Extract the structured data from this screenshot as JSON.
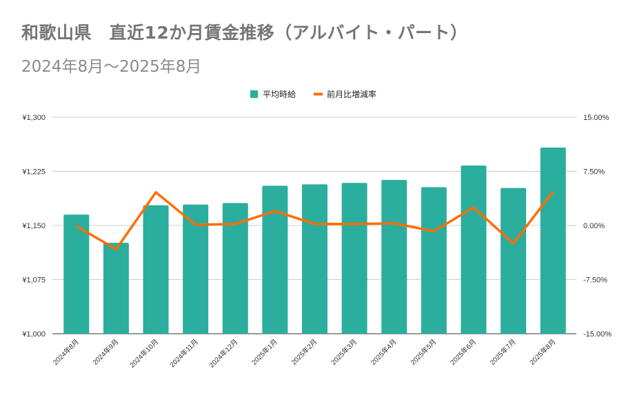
{
  "chart_data": {
    "type": "bar",
    "title": "和歌山県　直近12か月賃金推移（アルバイト・パート）",
    "subtitle": "2024年8月～2025年8月",
    "categories": [
      "2024年8月",
      "2024年9月",
      "2024年10月",
      "2024年11月",
      "2024年12月",
      "2025年1月",
      "2025年2月",
      "2025年3月",
      "2025年4月",
      "2025年5月",
      "2025年6月",
      "2025年7月",
      "2025年8月"
    ],
    "series": [
      {
        "name": "平均時給",
        "type": "bar",
        "axis": "left",
        "color": "#2bae9e",
        "values": [
          1165,
          1126,
          1178,
          1179,
          1181,
          1205,
          1207,
          1209,
          1213,
          1203,
          1233,
          1202,
          1258
        ]
      },
      {
        "name": "前月比増減率",
        "type": "line",
        "axis": "right",
        "color": "#ff6d01",
        "values": [
          -0.1,
          -3.3,
          4.6,
          0.1,
          0.2,
          2.0,
          0.2,
          0.2,
          0.3,
          -0.8,
          2.5,
          -2.5,
          4.7
        ]
      }
    ],
    "left_axis": {
      "min": 1000,
      "max": 1300,
      "ticks": [
        "¥1,000",
        "¥1,075",
        "¥1,150",
        "¥1,225",
        "¥1,300"
      ]
    },
    "right_axis": {
      "min": -15,
      "max": 15,
      "ticks": [
        "-15.00%",
        "-7.50%",
        "0.00%",
        "7.50%",
        "15.00%"
      ]
    },
    "legend": "top",
    "grid": true
  }
}
